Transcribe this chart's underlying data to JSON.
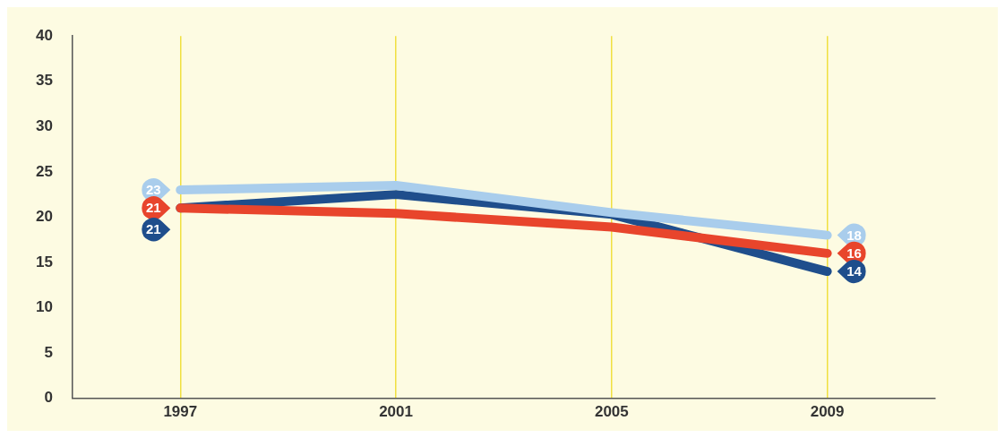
{
  "chart_data": {
    "type": "line",
    "categories": [
      "1997",
      "2001",
      "2005",
      "2009"
    ],
    "series": [
      {
        "color": "#a9cdec",
        "values": [
          23,
          23.5,
          20.5,
          18
        ],
        "value_labels": [
          "23",
          null,
          null,
          "18"
        ]
      },
      {
        "color": "#e8452c",
        "values": [
          21,
          20.4,
          18.9,
          16
        ],
        "value_labels": [
          "21",
          null,
          null,
          "16"
        ]
      },
      {
        "color": "#1f4e8c",
        "values": [
          21,
          22.5,
          20.3,
          14
        ],
        "value_labels": [
          "21",
          null,
          null,
          "14"
        ]
      }
    ],
    "ylim": [
      0,
      40
    ],
    "yticks": [
      0,
      5,
      10,
      15,
      20,
      25,
      30,
      35,
      40
    ],
    "grid": "x",
    "legend": false,
    "line_style": "solid"
  }
}
